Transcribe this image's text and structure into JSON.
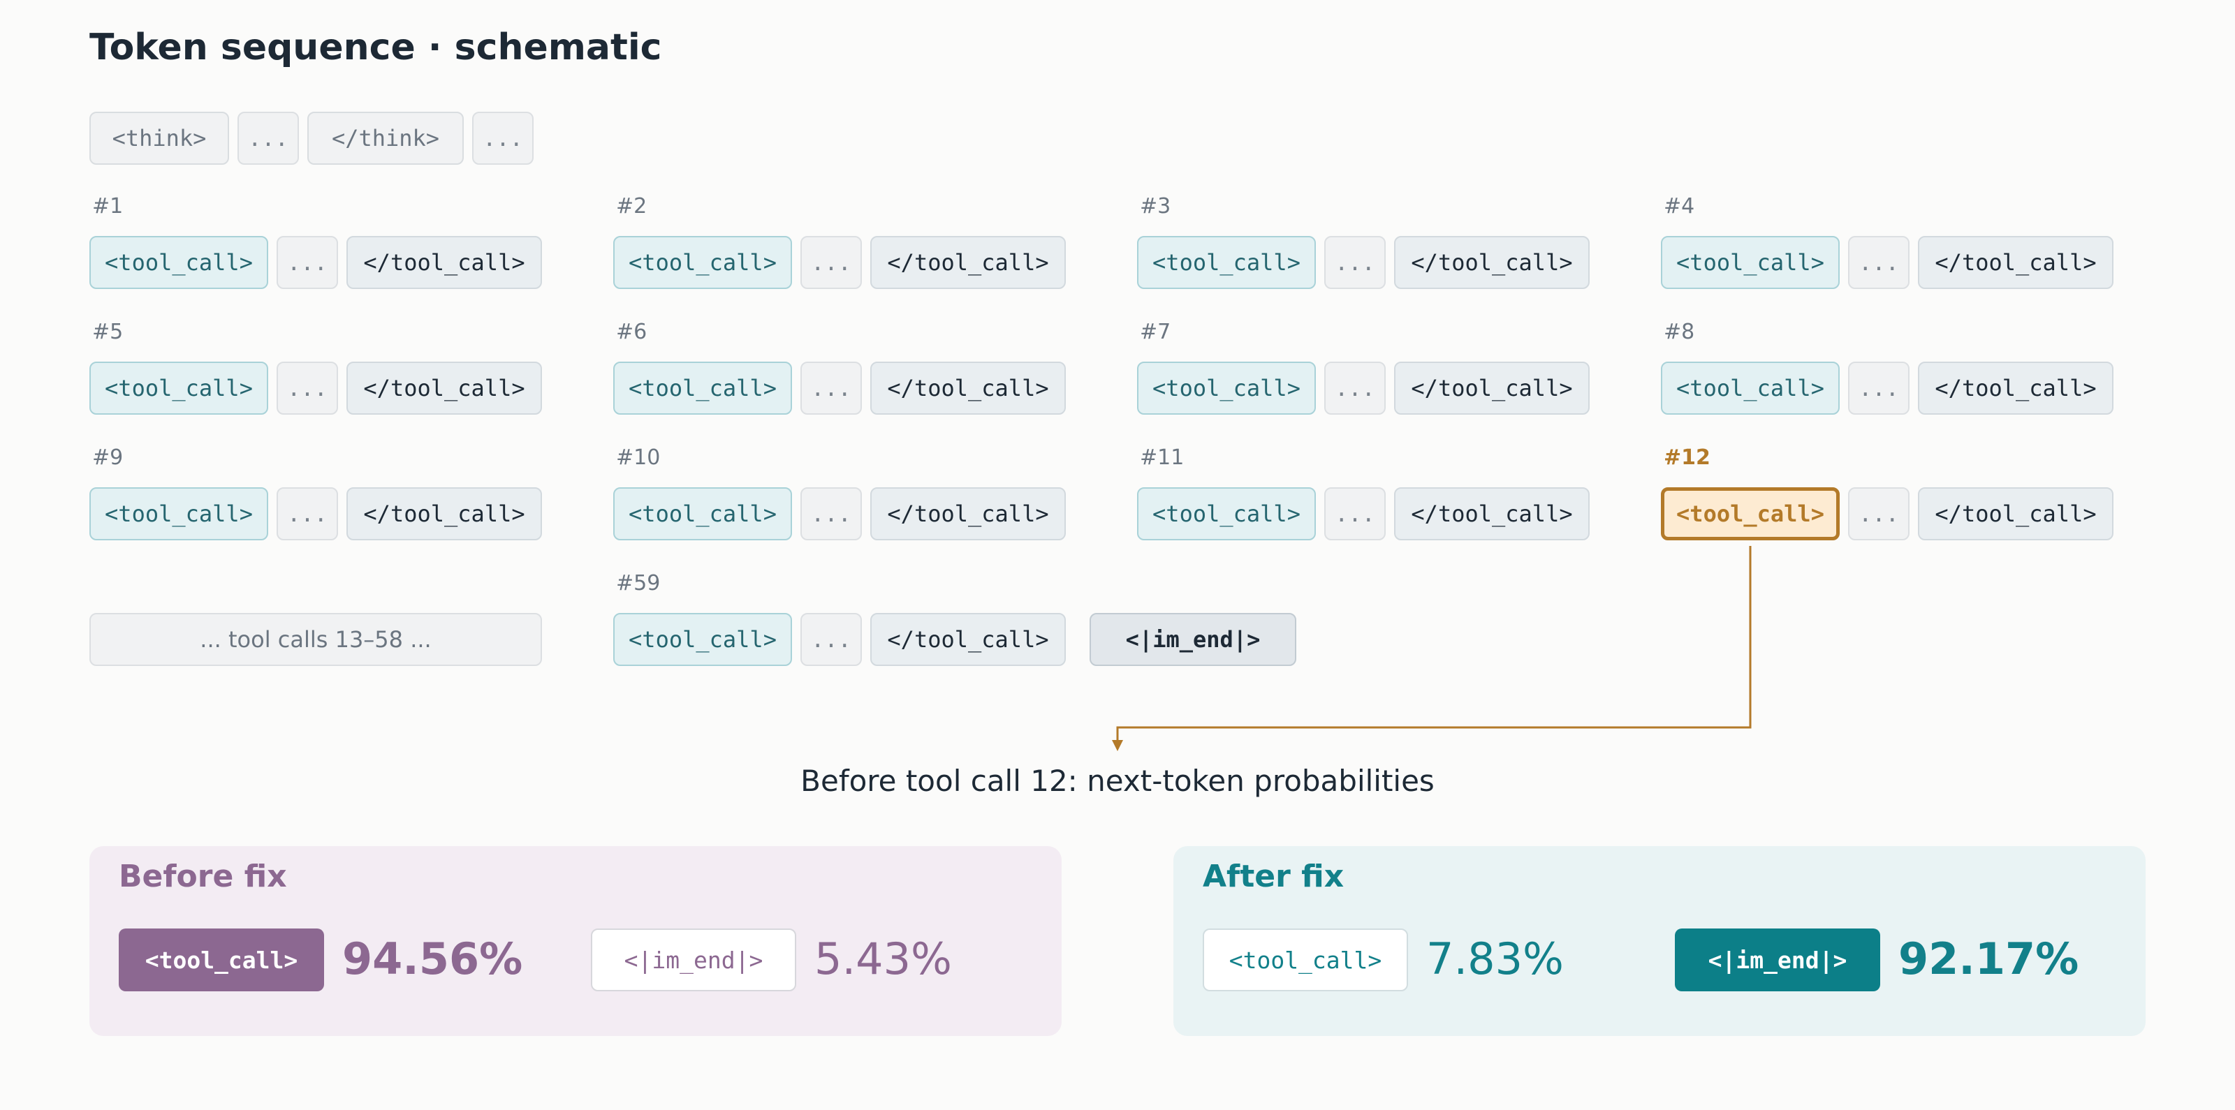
{
  "title": "Token sequence · schematic",
  "think_row": [
    "<think>",
    "...",
    "</think>",
    "..."
  ],
  "tool_call_tokens": {
    "open": "<tool_call>",
    "dots": "...",
    "close": "</tool_call>"
  },
  "grid_labels": [
    "#1",
    "#2",
    "#3",
    "#4",
    "#5",
    "#6",
    "#7",
    "#8",
    "#9",
    "#10",
    "#11",
    "#12"
  ],
  "highlighted_label": "#12",
  "skipped_text": "... tool calls 13–58 ...",
  "last_call_label": "#59",
  "end_token": "<|im_end|>",
  "caption": "Before tool call 12: next-token probabilities",
  "panels": {
    "before": {
      "title": "Before fix",
      "options": [
        {
          "token": "<tool_call>",
          "prob": "94.56%",
          "selected": true
        },
        {
          "token": "<|im_end|>",
          "prob": "5.43%",
          "selected": false
        }
      ]
    },
    "after": {
      "title": "After fix",
      "options": [
        {
          "token": "<tool_call>",
          "prob": "7.83%",
          "selected": false
        },
        {
          "token": "<|im_end|>",
          "prob": "92.17%",
          "selected": true
        }
      ]
    }
  },
  "colors": {
    "highlight": "#b37a29",
    "before_accent": "#8c6891",
    "after_accent": "#0c7f88",
    "tool_open_bg": "#e3f1f3"
  }
}
